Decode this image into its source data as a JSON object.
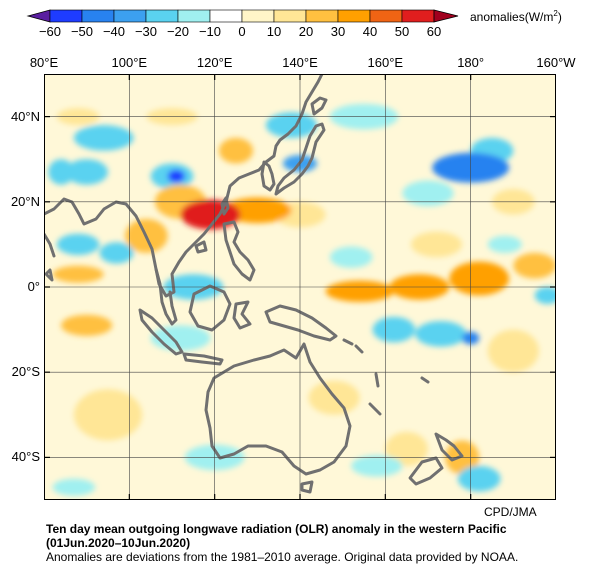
{
  "colorbar": {
    "ticks": [
      "−60",
      "−50",
      "−40",
      "−30",
      "−20",
      "−10",
      "0",
      "10",
      "20",
      "30",
      "40",
      "50",
      "60"
    ],
    "bins": [
      {
        "from": -60,
        "to": -50,
        "color": "#1e3cff"
      },
      {
        "from": -50,
        "to": -40,
        "color": "#2882f0"
      },
      {
        "from": -40,
        "to": -30,
        "color": "#3ca0f0"
      },
      {
        "from": -30,
        "to": -20,
        "color": "#5ad2f0"
      },
      {
        "from": -20,
        "to": -10,
        "color": "#a0f0f0"
      },
      {
        "from": -10,
        "to": 0,
        "color": "#ffffff"
      },
      {
        "from": 0,
        "to": 10,
        "color": "#fff5c8"
      },
      {
        "from": 10,
        "to": 20,
        "color": "#ffe696"
      },
      {
        "from": 20,
        "to": 30,
        "color": "#ffc040"
      },
      {
        "from": 30,
        "to": 40,
        "color": "#ffa000"
      },
      {
        "from": 40,
        "to": 50,
        "color": "#f06414"
      },
      {
        "from": 50,
        "to": 60,
        "color": "#e01e1e"
      }
    ],
    "under_color": "#5a1ea0",
    "over_color": "#a0001e",
    "units_label": "anomalies(W/m",
    "units_superscript": "2",
    "units_close": ")"
  },
  "map": {
    "lon_labels": [
      "80°E",
      "100°E",
      "120°E",
      "140°E",
      "160°E",
      "180°",
      "160°W"
    ],
    "lat_labels": [
      "40°N",
      "20°N",
      "0°",
      "20°S",
      "40°S"
    ],
    "lon_range": [
      80,
      200
    ],
    "lat_range": [
      -50,
      50
    ],
    "grid": true,
    "coastline_color": "#707070",
    "anomalies": [
      {
        "lon": 119,
        "lat": 17,
        "value": 58,
        "rx": 7,
        "ry": 3.5
      },
      {
        "lon": 130,
        "lat": 18,
        "value": 38,
        "rx": 8,
        "ry": 3
      },
      {
        "lon": 112,
        "lat": 20,
        "value": 28,
        "rx": 6,
        "ry": 4
      },
      {
        "lon": 104,
        "lat": 12,
        "value": 22,
        "rx": 5,
        "ry": 4
      },
      {
        "lon": 140,
        "lat": 17,
        "value": 18,
        "rx": 6,
        "ry": 3
      },
      {
        "lon": 125,
        "lat": 32,
        "value": 25,
        "rx": 4,
        "ry": 3
      },
      {
        "lon": 110,
        "lat": 40,
        "value": 18,
        "rx": 6,
        "ry": 2
      },
      {
        "lon": 88,
        "lat": 40,
        "value": 15,
        "rx": 5,
        "ry": 2
      },
      {
        "lon": 154,
        "lat": -1,
        "value": 35,
        "rx": 8,
        "ry": 2.5
      },
      {
        "lon": 168,
        "lat": 0,
        "value": 35,
        "rx": 7,
        "ry": 3
      },
      {
        "lon": 182,
        "lat": 2,
        "value": 30,
        "rx": 7,
        "ry": 4
      },
      {
        "lon": 195,
        "lat": 5,
        "value": 25,
        "rx": 5,
        "ry": 3
      },
      {
        "lon": 88,
        "lat": 3,
        "value": 25,
        "rx": 6,
        "ry": 2
      },
      {
        "lon": 90,
        "lat": -9,
        "value": 28,
        "rx": 6,
        "ry": 2.5
      },
      {
        "lon": 172,
        "lat": 10,
        "value": 18,
        "rx": 6,
        "ry": 3
      },
      {
        "lon": 190,
        "lat": 20,
        "value": 15,
        "rx": 5,
        "ry": 3
      },
      {
        "lon": 178,
        "lat": -40,
        "value": 25,
        "rx": 4,
        "ry": 4
      },
      {
        "lon": 148,
        "lat": -26,
        "value": 15,
        "rx": 6,
        "ry": 4
      },
      {
        "lon": 190,
        "lat": -15,
        "value": 15,
        "rx": 6,
        "ry": 5
      },
      {
        "lon": 95,
        "lat": -30,
        "value": 12,
        "rx": 8,
        "ry": 6
      },
      {
        "lon": 165,
        "lat": -38,
        "value": 15,
        "rx": 5,
        "ry": 4
      },
      {
        "lon": 111,
        "lat": 26,
        "value": -55,
        "rx": 2,
        "ry": 1.5
      },
      {
        "lon": 110,
        "lat": 26,
        "value": -25,
        "rx": 5,
        "ry": 3
      },
      {
        "lon": 180,
        "lat": 28,
        "value": -42,
        "rx": 9,
        "ry": 3.5
      },
      {
        "lon": 185,
        "lat": 32,
        "value": -30,
        "rx": 5,
        "ry": 3
      },
      {
        "lon": 170,
        "lat": 22,
        "value": -20,
        "rx": 6,
        "ry": 3
      },
      {
        "lon": 140,
        "lat": 29,
        "value": -40,
        "rx": 4,
        "ry": 2
      },
      {
        "lon": 138,
        "lat": 38,
        "value": -25,
        "rx": 6,
        "ry": 3
      },
      {
        "lon": 155,
        "lat": 40,
        "value": -20,
        "rx": 8,
        "ry": 3
      },
      {
        "lon": 94,
        "lat": 35,
        "value": -30,
        "rx": 7,
        "ry": 3
      },
      {
        "lon": 90,
        "lat": 27,
        "value": -25,
        "rx": 5,
        "ry": 3
      },
      {
        "lon": 84,
        "lat": 27,
        "value": -30,
        "rx": 3,
        "ry": 3
      },
      {
        "lon": 88,
        "lat": 10,
        "value": -30,
        "rx": 5,
        "ry": 2.5
      },
      {
        "lon": 97,
        "lat": 8,
        "value": -25,
        "rx": 4,
        "ry": 2.5
      },
      {
        "lon": 115,
        "lat": 0,
        "value": -28,
        "rx": 7,
        "ry": 3
      },
      {
        "lon": 112,
        "lat": -12,
        "value": -20,
        "rx": 7,
        "ry": 3
      },
      {
        "lon": 180,
        "lat": -12,
        "value": -50,
        "rx": 2,
        "ry": 1.5
      },
      {
        "lon": 173,
        "lat": -11,
        "value": -30,
        "rx": 6,
        "ry": 3
      },
      {
        "lon": 162,
        "lat": -10,
        "value": -25,
        "rx": 5,
        "ry": 3
      },
      {
        "lon": 188,
        "lat": 10,
        "value": -20,
        "rx": 4,
        "ry": 2
      },
      {
        "lon": 198,
        "lat": -2,
        "value": -25,
        "rx": 3,
        "ry": 2
      },
      {
        "lon": 152,
        "lat": 7,
        "value": -20,
        "rx": 5,
        "ry": 2.5
      },
      {
        "lon": 158,
        "lat": -42,
        "value": -20,
        "rx": 6,
        "ry": 2.5
      },
      {
        "lon": 182,
        "lat": -45,
        "value": -25,
        "rx": 5,
        "ry": 3
      },
      {
        "lon": 120,
        "lat": -40,
        "value": -18,
        "rx": 7,
        "ry": 3
      },
      {
        "lon": 87,
        "lat": -47,
        "value": -15,
        "rx": 5,
        "ry": 2
      }
    ]
  },
  "credit": "CPD/JMA",
  "caption": {
    "title": "Ten day mean outgoing longwave radiation (OLR) anomaly in the western Pacific",
    "period": "(01Jun.2020–10Jun.2020)",
    "note": "Anomalies are deviations from the 1981–2010 average. Original data provided by NOAA."
  }
}
